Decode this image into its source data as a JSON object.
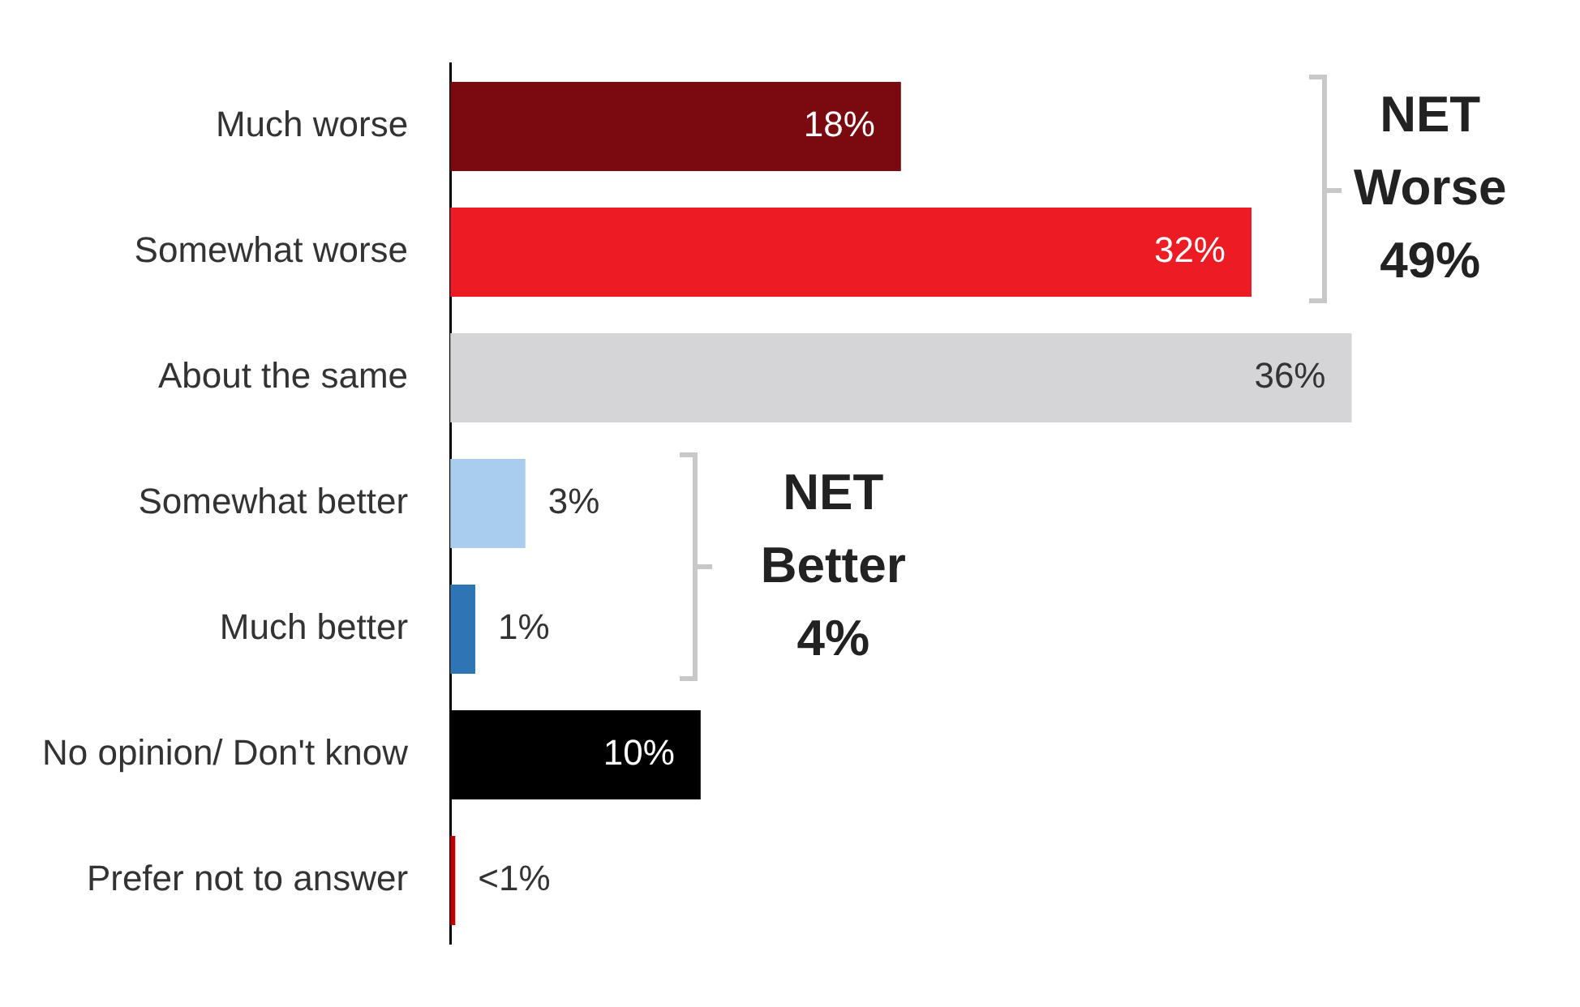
{
  "chart_data": {
    "type": "bar",
    "orientation": "horizontal",
    "categories": [
      "Much worse",
      "Somewhat worse",
      "About the same",
      "Somewhat better",
      "Much better",
      "No opinion/ Don't know",
      "Prefer not to answer"
    ],
    "values": [
      18,
      32,
      36,
      3,
      1,
      10,
      0.2
    ],
    "colors": [
      "#7b0a10",
      "#ed1c24",
      "#d5d5d7",
      "#a9cdee",
      "#2e75b6",
      "#000000",
      "#c00000"
    ],
    "value_labels": [
      "18%",
      "32%",
      "36%",
      "3%",
      "1%",
      "10%",
      "<1%"
    ],
    "annotations": [
      "NET Worse 49%",
      "NET Better 4%"
    ],
    "legend": false
  }
}
